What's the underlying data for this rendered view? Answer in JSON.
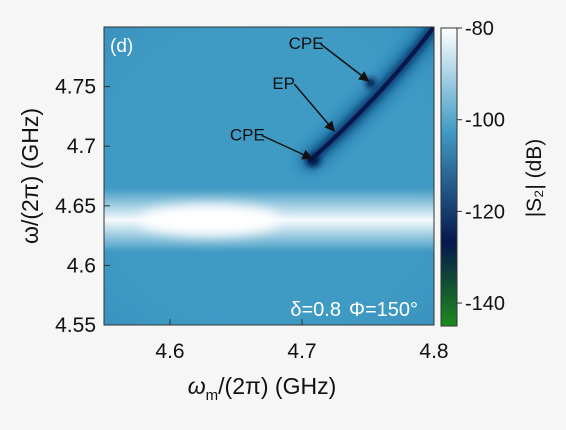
{
  "chart_data": {
    "type": "heatmap",
    "panel_label": "(d)",
    "xlabel": {
      "symbol": "ω",
      "sub": "m",
      "rest": "/(2π) (GHz)"
    },
    "ylabel": "ω/(2π) (GHz)",
    "xlim": [
      4.55,
      4.8
    ],
    "ylim": [
      4.55,
      4.8
    ],
    "x_ticks": [
      4.6,
      4.7,
      4.8
    ],
    "x_tick_labels": [
      "4.6",
      "4.7",
      "4.8"
    ],
    "y_ticks": [
      4.55,
      4.6,
      4.65,
      4.7,
      4.75
    ],
    "y_tick_labels": [
      "4.55",
      "4.6",
      "4.65",
      "4.7",
      "4.75"
    ],
    "colorbar": {
      "label": "|S₂| (dB)",
      "range": [
        -145,
        -80
      ],
      "ticks": [
        -80,
        -100,
        -120,
        -140
      ],
      "tick_labels": [
        "-80",
        "-100",
        "-120",
        "-140"
      ]
    },
    "parameters_text": {
      "delta": "δ=0.8",
      "phi": "Φ=150°"
    },
    "features": {
      "bright_band_center_y": 4.638,
      "dark_branch_start": [
        4.706,
        4.688
      ],
      "dark_branch_end": [
        4.8,
        4.8
      ]
    },
    "annotations": [
      {
        "label": "CPE",
        "target": [
          4.752,
          4.753
        ]
      },
      {
        "label": "EP",
        "target": [
          4.726,
          4.711
        ]
      },
      {
        "label": "CPE",
        "target": [
          4.709,
          4.688
        ]
      }
    ]
  },
  "colors": {
    "background": "#f6f6f6",
    "map_base": "#3f9ac4",
    "map_bright": "#ffffff",
    "map_dark": "#0d3a6e",
    "colormap_stops": [
      "#ffffff",
      "#3f9ac4",
      "#07174d",
      "#1d8a1d"
    ]
  }
}
